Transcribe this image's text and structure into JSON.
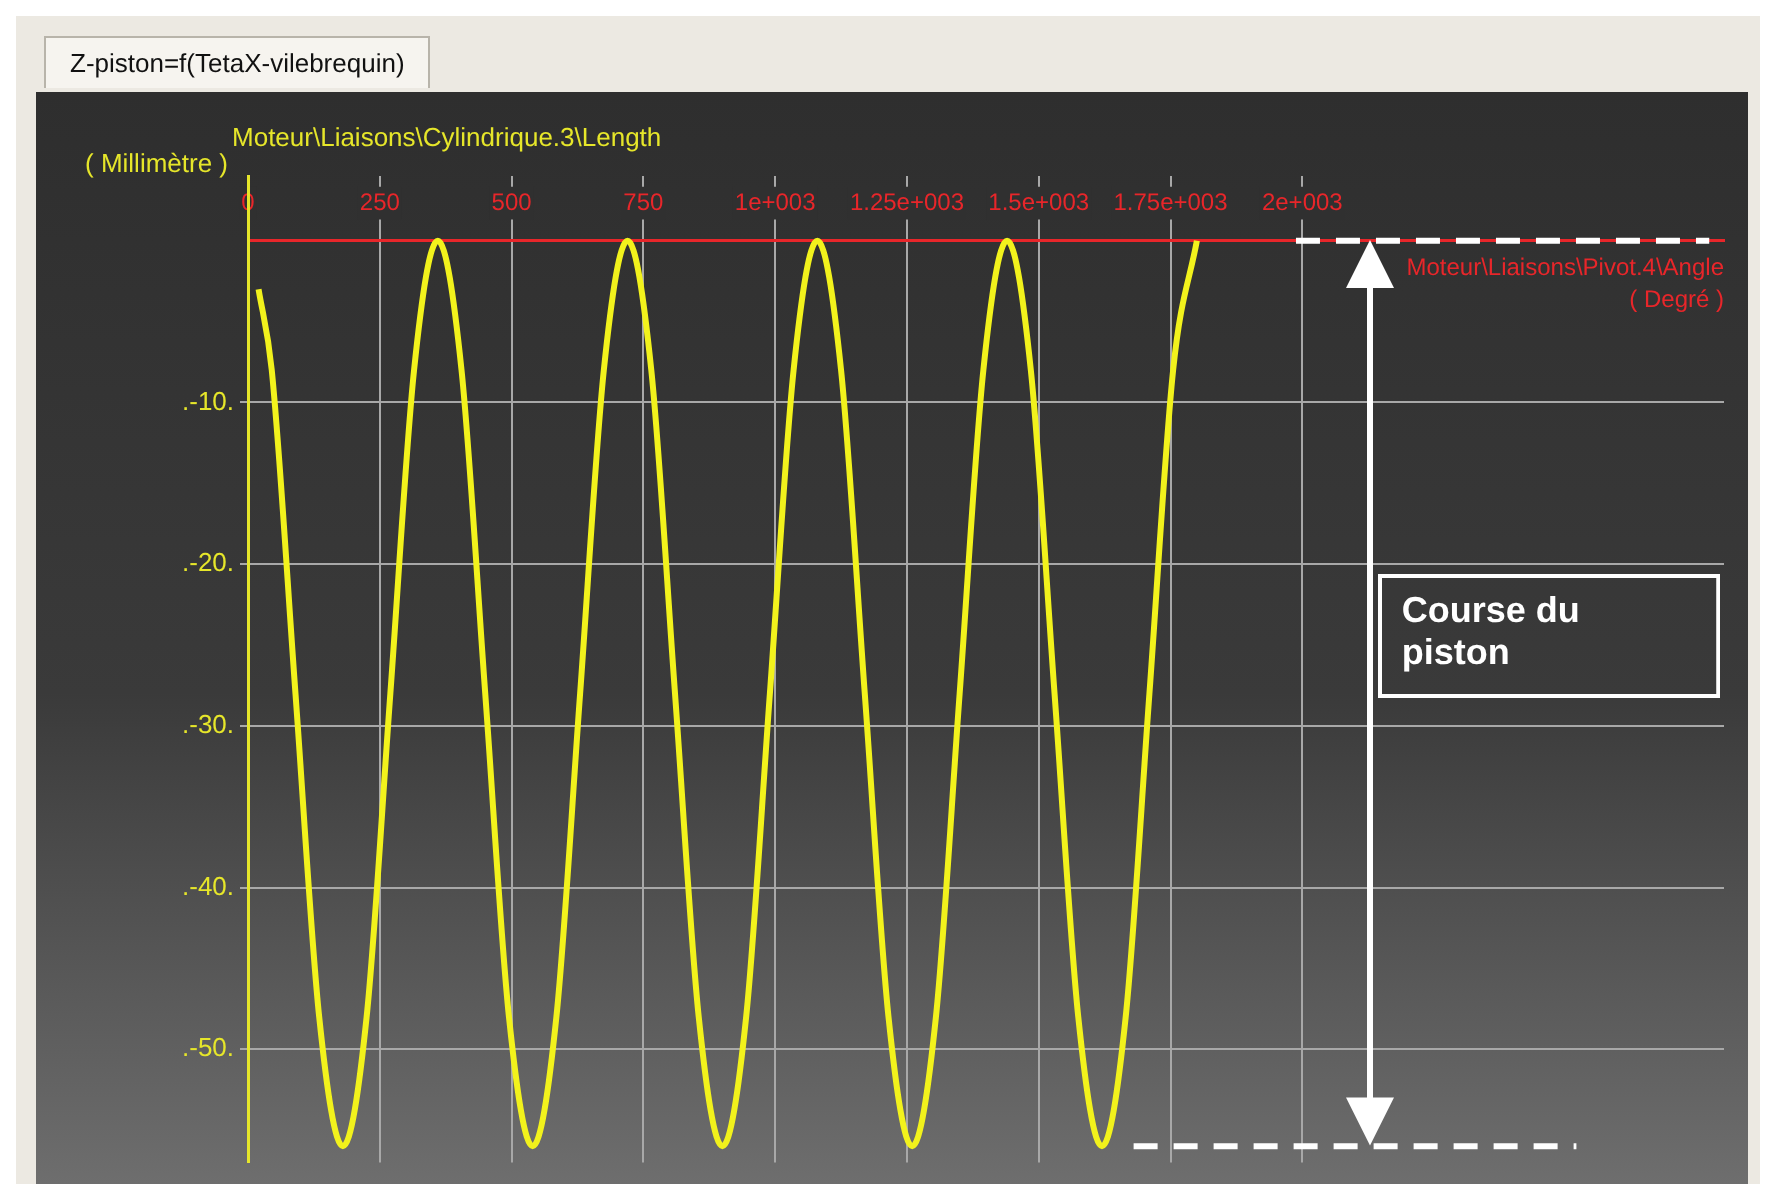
{
  "chart_data": {
    "type": "line",
    "title": "Z-piston=f(TetaX-vilebrequin)",
    "xlabel": "Moteur\\Liaisons\\Pivot.4\\Angle",
    "ylabel": "Moteur\\Liaisons\\Cylindrique.3\\Length",
    "annotations": [
      "( Millimètre )",
      "( Degré )",
      "Course du piston"
    ],
    "x": [
      20,
      45,
      90,
      135,
      180,
      225,
      270,
      315,
      360,
      405,
      450,
      495,
      540,
      585,
      630,
      675,
      720,
      765,
      810,
      855,
      900,
      945,
      990,
      1035,
      1080,
      1125,
      1170,
      1215,
      1260,
      1305,
      1350,
      1395,
      1440,
      1485,
      1530,
      1575,
      1620,
      1665,
      1710,
      1755,
      1800
    ],
    "series": [
      {
        "color": "#f2f21c",
        "values": [
          -3,
          -8,
          -28,
          -48,
          -56,
          -48,
          -28,
          -8,
          0,
          -8,
          -28,
          -48,
          -56,
          -48,
          -28,
          -8,
          0,
          -8,
          -28,
          -48,
          -56,
          -48,
          -28,
          -8,
          0,
          -8,
          -28,
          -48,
          -56,
          -48,
          -28,
          -8,
          0,
          -8,
          -28,
          -48,
          -56,
          -48,
          -28,
          -8,
          0
        ]
      }
    ],
    "xlim": [
      0,
      2800
    ],
    "ylim": [
      -57,
      4
    ],
    "xticks": [
      0,
      250,
      500,
      750,
      {
        "value": 1000,
        "label": "1e+003"
      },
      {
        "value": 1250,
        "label": "1.25e+003"
      },
      {
        "value": 1500,
        "label": "1.5e+003"
      },
      {
        "value": 1750,
        "label": "1.75e+003"
      },
      {
        "value": 2000,
        "label": "2e+003"
      }
    ],
    "yticks": [
      {
        "value": -10,
        "label": ".-10."
      },
      {
        "value": -20,
        "label": ".-20."
      },
      {
        "value": -30,
        "label": ".-30."
      },
      {
        "value": -40,
        "label": ".-40."
      },
      {
        "value": -50,
        "label": ".-50."
      }
    ],
    "ref_lines": [
      {
        "axis": "y",
        "value": 0,
        "label": null,
        "color": "#ffffff",
        "line_style": "dashed"
      },
      {
        "axis": "y",
        "value": -56,
        "label": null,
        "color": "#ffffff",
        "line_style": "dashed"
      }
    ],
    "grid": true,
    "legend": false,
    "marker": "none",
    "line_style": "solid"
  }
}
